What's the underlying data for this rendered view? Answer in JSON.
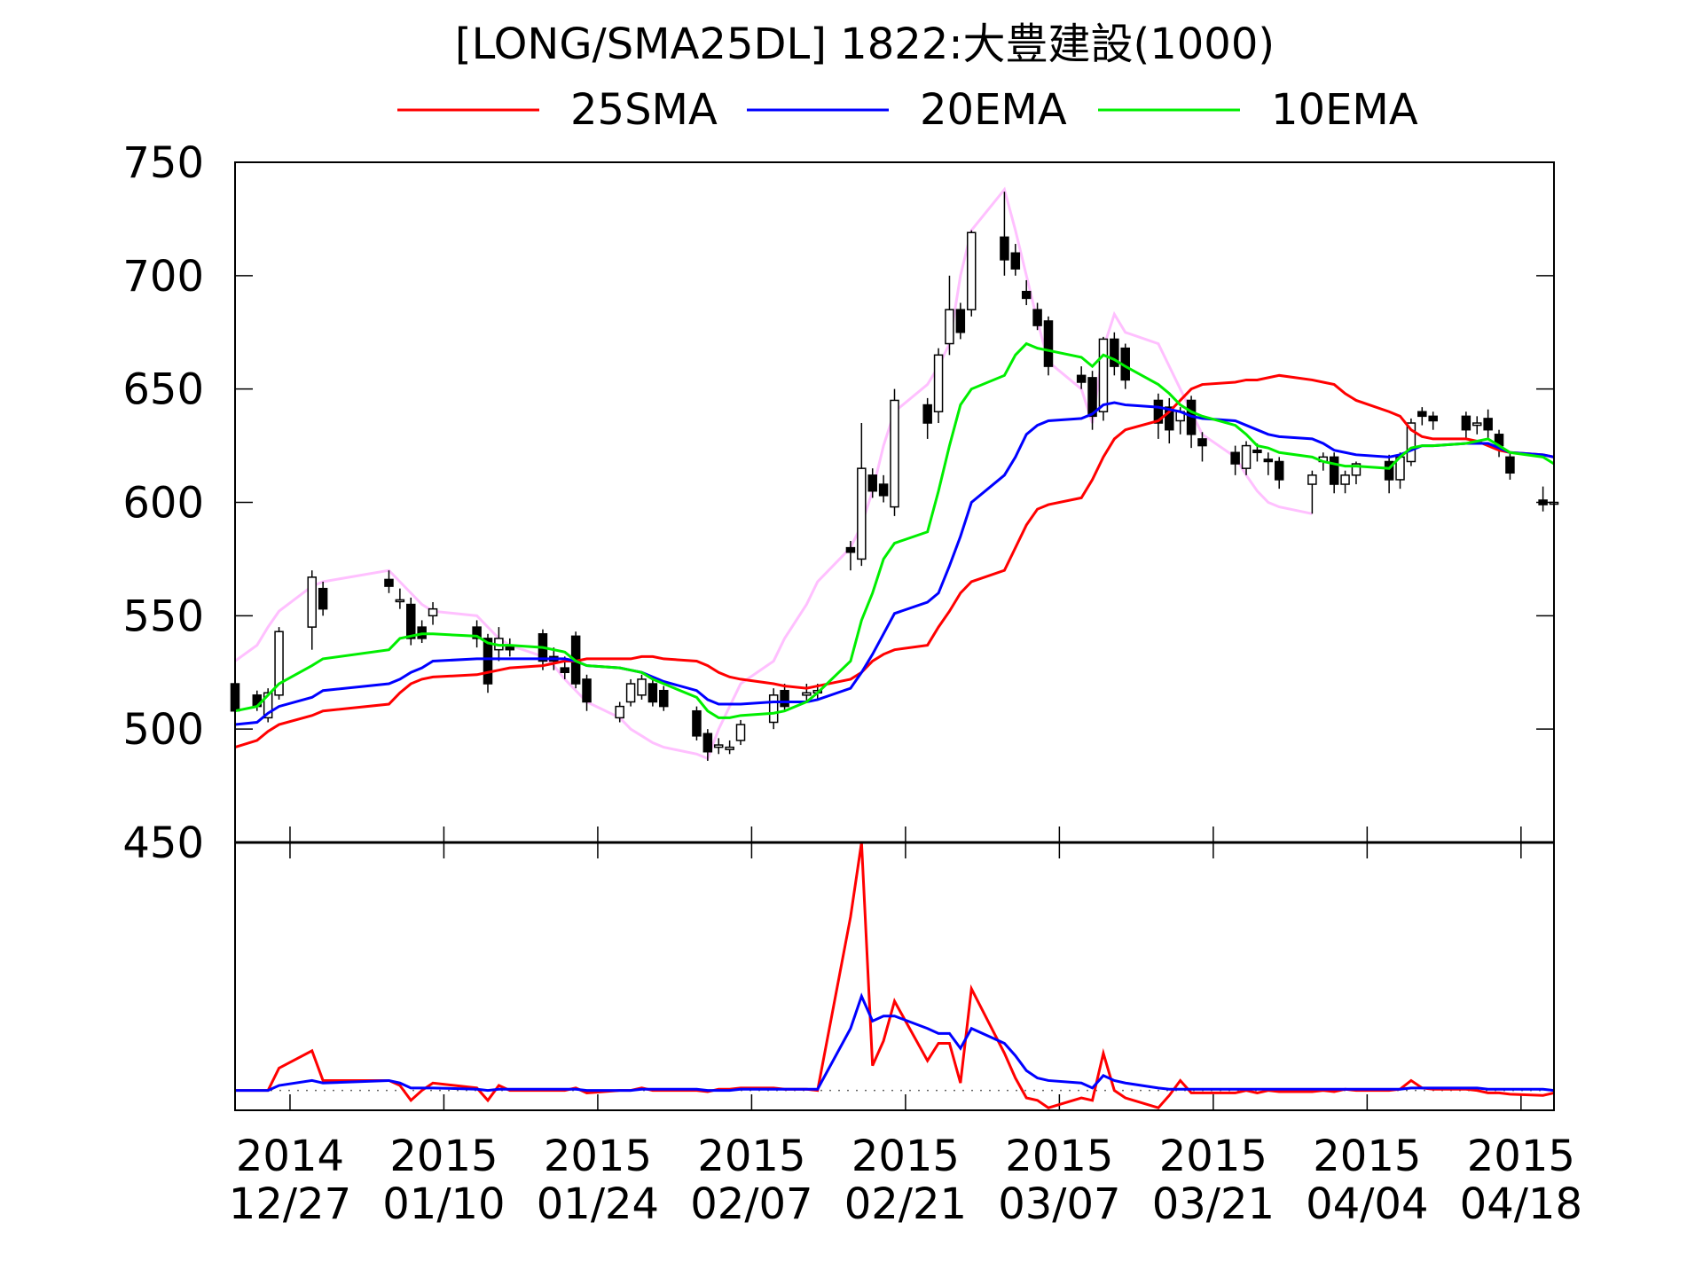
{
  "chart_data": {
    "type": "candlestick",
    "title": "[LONG/SMA25DL] 1822:大豊建設(1000)",
    "legend": {
      "placement": "top",
      "entries": [
        {
          "name": "25SMA",
          "color": "#ff0000"
        },
        {
          "name": "20EMA",
          "color": "#0000ff"
        },
        {
          "name": "10EMA",
          "color": "#00ee00"
        }
      ]
    },
    "overlay_color": "#ffc0ff",
    "ylim": [
      450,
      750
    ],
    "yticks": [
      450,
      500,
      550,
      600,
      650,
      700,
      750
    ],
    "x_range": [
      "2014-12-22",
      "2015-04-21"
    ],
    "xticks": [
      {
        "date": "2014-12-27",
        "year": "2014",
        "md": "12/27"
      },
      {
        "date": "2015-01-10",
        "year": "2015",
        "md": "01/10"
      },
      {
        "date": "2015-01-24",
        "year": "2015",
        "md": "01/24"
      },
      {
        "date": "2015-02-07",
        "year": "2015",
        "md": "02/07"
      },
      {
        "date": "2015-02-21",
        "year": "2015",
        "md": "02/21"
      },
      {
        "date": "2015-03-07",
        "year": "2015",
        "md": "03/07"
      },
      {
        "date": "2015-03-21",
        "year": "2015",
        "md": "03/21"
      },
      {
        "date": "2015-04-04",
        "year": "2015",
        "md": "04/04"
      },
      {
        "date": "2015-04-18",
        "year": "2015",
        "md": "04/18"
      }
    ],
    "dates": [
      "2014-12-22",
      "2014-12-24",
      "2014-12-25",
      "2014-12-26",
      "2014-12-29",
      "2014-12-30",
      "2015-01-05",
      "2015-01-06",
      "2015-01-07",
      "2015-01-08",
      "2015-01-09",
      "2015-01-13",
      "2015-01-14",
      "2015-01-15",
      "2015-01-16",
      "2015-01-19",
      "2015-01-20",
      "2015-01-21",
      "2015-01-22",
      "2015-01-23",
      "2015-01-26",
      "2015-01-27",
      "2015-01-28",
      "2015-01-29",
      "2015-01-30",
      "2015-02-02",
      "2015-02-03",
      "2015-02-04",
      "2015-02-05",
      "2015-02-06",
      "2015-02-09",
      "2015-02-10",
      "2015-02-12",
      "2015-02-13",
      "2015-02-16",
      "2015-02-17",
      "2015-02-18",
      "2015-02-19",
      "2015-02-20",
      "2015-02-23",
      "2015-02-24",
      "2015-02-25",
      "2015-02-26",
      "2015-02-27",
      "2015-03-02",
      "2015-03-03",
      "2015-03-04",
      "2015-03-05",
      "2015-03-06",
      "2015-03-09",
      "2015-03-10",
      "2015-03-11",
      "2015-03-12",
      "2015-03-13",
      "2015-03-16",
      "2015-03-17",
      "2015-03-18",
      "2015-03-19",
      "2015-03-20",
      "2015-03-23",
      "2015-03-24",
      "2015-03-25",
      "2015-03-26",
      "2015-03-27",
      "2015-03-30",
      "2015-03-31",
      "2015-04-01",
      "2015-04-02",
      "2015-04-03",
      "2015-04-06",
      "2015-04-07",
      "2015-04-08",
      "2015-04-09",
      "2015-04-10",
      "2015-04-13",
      "2015-04-14",
      "2015-04-15",
      "2015-04-16",
      "2015-04-17",
      "2015-04-20",
      "2015-04-21"
    ],
    "open": [
      520,
      515,
      505,
      515,
      545,
      562,
      566,
      557,
      555,
      545,
      550,
      545,
      540,
      535,
      537,
      542,
      532,
      527,
      541,
      522,
      505,
      512,
      515,
      520,
      517,
      508,
      498,
      492,
      491,
      495,
      503,
      517,
      515,
      516,
      580,
      575,
      612,
      608,
      598,
      643,
      640,
      670,
      685,
      685,
      717,
      710,
      693,
      685,
      680,
      656,
      655,
      640,
      672,
      668,
      645,
      642,
      636,
      645,
      628,
      622,
      615,
      623,
      619,
      618,
      608,
      618,
      620,
      608,
      612,
      618,
      610,
      618,
      640,
      638,
      638,
      634,
      637,
      630,
      620,
      601,
      600
    ],
    "high": [
      522,
      517,
      518,
      545,
      570,
      565,
      570,
      562,
      558,
      548,
      556,
      548,
      542,
      545,
      540,
      544,
      536,
      532,
      543,
      524,
      512,
      522,
      524,
      522,
      519,
      510,
      500,
      496,
      495,
      504,
      518,
      520,
      520,
      520,
      583,
      635,
      615,
      612,
      650,
      646,
      668,
      700,
      688,
      720,
      737,
      714,
      698,
      688,
      682,
      660,
      658,
      673,
      675,
      670,
      648,
      646,
      642,
      647,
      631,
      625,
      627,
      626,
      622,
      620,
      614,
      622,
      622,
      614,
      618,
      621,
      622,
      637,
      642,
      640,
      640,
      638,
      641,
      632,
      622,
      607,
      602
    ],
    "low": [
      505,
      508,
      503,
      513,
      535,
      550,
      560,
      553,
      537,
      538,
      546,
      536,
      516,
      530,
      532,
      526,
      526,
      522,
      518,
      508,
      503,
      510,
      513,
      510,
      508,
      495,
      486,
      489,
      489,
      493,
      500,
      508,
      512,
      513,
      570,
      572,
      602,
      600,
      594,
      628,
      635,
      665,
      672,
      682,
      700,
      700,
      687,
      676,
      656,
      650,
      632,
      636,
      656,
      650,
      628,
      626,
      630,
      624,
      618,
      612,
      612,
      618,
      612,
      606,
      595,
      614,
      604,
      604,
      608,
      604,
      606,
      616,
      634,
      632,
      628,
      630,
      628,
      620,
      610,
      596,
      598
    ],
    "close": [
      508,
      510,
      516,
      543,
      567,
      553,
      563,
      557,
      540,
      540,
      553,
      540,
      520,
      540,
      535,
      530,
      530,
      525,
      520,
      512,
      510,
      520,
      522,
      512,
      510,
      497,
      490,
      493,
      492,
      502,
      515,
      510,
      516,
      517,
      578,
      615,
      605,
      603,
      645,
      635,
      665,
      685,
      675,
      719,
      707,
      703,
      690,
      678,
      660,
      653,
      638,
      672,
      660,
      654,
      635,
      632,
      640,
      630,
      625,
      617,
      625,
      622,
      618,
      610,
      612,
      620,
      608,
      612,
      617,
      610,
      620,
      635,
      638,
      636,
      632,
      635,
      632,
      625,
      613,
      599,
      600
    ],
    "series": [
      {
        "name": "25SMA",
        "values": [
          492,
          495,
          499,
          502,
          506,
          508,
          511,
          516,
          520,
          522,
          523,
          524,
          525,
          526,
          527,
          528,
          529,
          530,
          530,
          531,
          531,
          531,
          532,
          532,
          531,
          530,
          528,
          525,
          523,
          522,
          520,
          519,
          518,
          519,
          522,
          525,
          530,
          533,
          535,
          537,
          545,
          552,
          560,
          565,
          570,
          580,
          590,
          597,
          599,
          602,
          610,
          620,
          628,
          632,
          636,
          640,
          645,
          650,
          652,
          653,
          654,
          654,
          655,
          656,
          654,
          653,
          652,
          648,
          645,
          640,
          638,
          632,
          629,
          628,
          628,
          627,
          625,
          623,
          622,
          621,
          620
        ]
      },
      {
        "name": "20EMA",
        "values": [
          502,
          503,
          507,
          510,
          514,
          517,
          520,
          522,
          525,
          527,
          530,
          531,
          531,
          531,
          531,
          531,
          531,
          531,
          530,
          528,
          527,
          526,
          525,
          523,
          521,
          517,
          513,
          511,
          511,
          511,
          512,
          512,
          512,
          513,
          518,
          525,
          533,
          542,
          551,
          556,
          560,
          572,
          585,
          600,
          612,
          620,
          630,
          634,
          636,
          637,
          639,
          643,
          644,
          643,
          642,
          641,
          640,
          638,
          637,
          636,
          634,
          632,
          630,
          629,
          628,
          626,
          623,
          622,
          621,
          620,
          621,
          623,
          625,
          625,
          626,
          626,
          626,
          624,
          622,
          621,
          620
        ]
      },
      {
        "name": "10EMA",
        "values": [
          508,
          510,
          515,
          520,
          528,
          531,
          535,
          540,
          541,
          542,
          542,
          541,
          538,
          537,
          537,
          536,
          535,
          534,
          530,
          528,
          527,
          526,
          525,
          522,
          520,
          514,
          508,
          505,
          505,
          506,
          507,
          508,
          512,
          516,
          530,
          548,
          560,
          575,
          582,
          587,
          605,
          625,
          643,
          650,
          656,
          665,
          670,
          668,
          667,
          664,
          660,
          665,
          663,
          660,
          652,
          648,
          643,
          640,
          638,
          634,
          630,
          625,
          624,
          622,
          620,
          618,
          617,
          616,
          616,
          615,
          620,
          624,
          625,
          625,
          626,
          627,
          628,
          625,
          622,
          620,
          617
        ]
      },
      {
        "name": "overlay",
        "values": [
          530,
          537,
          545,
          552,
          563,
          565,
          570,
          565,
          560,
          555,
          552,
          550,
          545,
          540,
          537,
          532,
          528,
          522,
          517,
          512,
          505,
          500,
          497,
          494,
          492,
          489,
          487,
          500,
          510,
          520,
          530,
          540,
          555,
          565,
          580,
          590,
          605,
          625,
          640,
          652,
          660,
          670,
          700,
          720,
          738,
          720,
          700,
          680,
          662,
          650,
          635,
          668,
          683,
          675,
          670,
          660,
          650,
          640,
          630,
          620,
          612,
          605,
          600,
          598,
          595,
          null,
          null,
          null,
          null,
          null,
          null,
          null,
          null,
          null,
          null,
          null,
          null,
          null,
          null,
          null,
          null
        ]
      }
    ],
    "lower_panel": {
      "ylim": [
        -8,
        100
      ],
      "baseline": 0,
      "series": [
        {
          "name": "25SMA",
          "values": [
            0,
            0,
            0,
            9,
            16,
            4,
            4,
            2,
            -4,
            0,
            3,
            1,
            -4,
            2,
            0,
            0,
            0,
            0,
            1,
            -1,
            0,
            0,
            1,
            0,
            0,
            0,
            -0.5,
            0.5,
            0.5,
            1,
            1,
            0.5,
            0.5,
            0,
            70,
            100,
            10,
            20,
            36,
            12,
            19,
            19,
            3,
            41,
            15,
            5,
            -3,
            -4,
            -7,
            -3,
            -4,
            15,
            0,
            -3,
            -7,
            -2,
            4,
            -1,
            -1,
            -1,
            0,
            -1,
            0,
            -0.5,
            -0.5,
            0,
            -0.5,
            0.5,
            0,
            0,
            0.5,
            4,
            1,
            0.5,
            0.5,
            0,
            -1,
            -1,
            -1.5,
            -2,
            -1
          ]
        },
        {
          "name": "20EMA",
          "values": [
            0,
            0,
            0,
            2,
            4,
            3,
            4,
            3,
            1,
            1,
            1,
            0.5,
            0,
            0.5,
            0.5,
            0.5,
            0.5,
            0.5,
            0.5,
            0,
            0,
            0,
            0.5,
            0.5,
            0.5,
            0.5,
            0,
            0,
            0,
            0.5,
            0.5,
            0.5,
            0.5,
            0.5,
            25,
            38,
            28,
            30,
            30,
            25,
            23,
            23,
            17,
            25,
            19,
            14,
            8,
            5,
            4,
            3,
            1,
            6,
            4,
            3,
            1,
            0.5,
            0.5,
            0.5,
            0.5,
            0.5,
            0.5,
            0.5,
            0.5,
            0.5,
            0.5,
            0.5,
            0.5,
            0.5,
            0.5,
            0.5,
            0.5,
            1,
            1,
            1,
            1,
            1,
            0.5,
            0.5,
            0.5,
            0.5,
            0
          ]
        }
      ]
    }
  }
}
